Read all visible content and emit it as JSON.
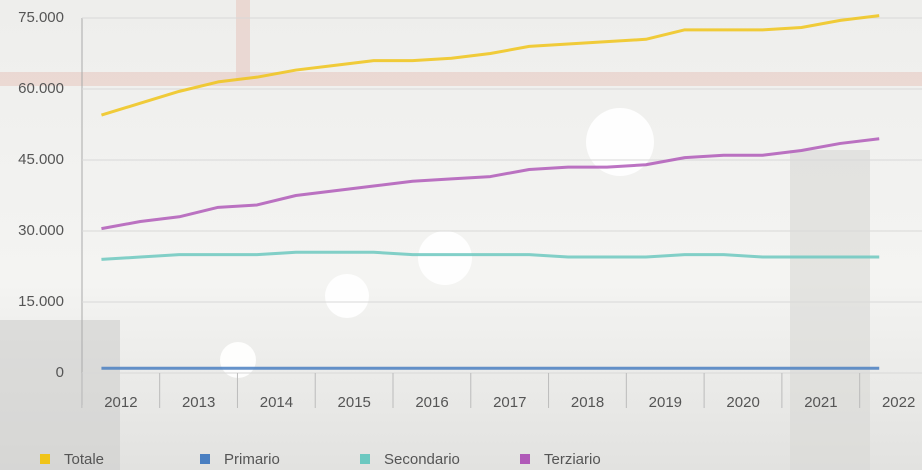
{
  "chart_data": {
    "type": "line",
    "x": [
      2011.75,
      2012.25,
      2012.75,
      2013.25,
      2013.75,
      2014.25,
      2014.75,
      2015.25,
      2015.75,
      2016.25,
      2016.75,
      2017.25,
      2017.75,
      2018.25,
      2018.75,
      2019.25,
      2019.75,
      2020.25,
      2020.75,
      2021.25,
      2021.75
    ],
    "series": [
      {
        "name": "Totale",
        "color": "#f0c419",
        "values": [
          54500,
          57000,
          59500,
          61500,
          62500,
          64000,
          65000,
          66000,
          66000,
          66500,
          67500,
          69000,
          69500,
          70000,
          70500,
          72500,
          72500,
          72500,
          73000,
          74500,
          75500
        ]
      },
      {
        "name": "Primario",
        "color": "#4a7fc1",
        "values": [
          1000,
          1000,
          1000,
          1000,
          1000,
          1000,
          1000,
          1000,
          1000,
          1000,
          1000,
          1000,
          1000,
          1000,
          1000,
          1000,
          1000,
          1000,
          1000,
          1000,
          1000
        ]
      },
      {
        "name": "Secondario",
        "color": "#6cc8c0",
        "values": [
          24000,
          24500,
          25000,
          25000,
          25000,
          25500,
          25500,
          25500,
          25000,
          25000,
          25000,
          25000,
          24500,
          24500,
          24500,
          25000,
          25000,
          24500,
          24500,
          24500,
          24500
        ]
      },
      {
        "name": "Terziario",
        "color": "#b05ab8",
        "values": [
          30500,
          32000,
          33000,
          35000,
          35500,
          37500,
          38500,
          39500,
          40500,
          41000,
          41500,
          43000,
          43500,
          43500,
          44000,
          45500,
          46000,
          46000,
          47000,
          48500,
          49500
        ]
      }
    ],
    "xlim": [
      2011.5,
      2022.3
    ],
    "xticks": [
      2012,
      2013,
      2014,
      2015,
      2016,
      2017,
      2018,
      2019,
      2020,
      2021,
      2022
    ],
    "ylim": [
      0,
      75000
    ],
    "yticks": [
      0,
      {
        "value": 15000,
        "label": "15.000"
      },
      {
        "value": 30000,
        "label": "30.000"
      },
      {
        "value": 45000,
        "label": "45.000"
      },
      {
        "value": 60000,
        "label": "60.000"
      },
      {
        "value": 75000,
        "label": "75.000"
      }
    ],
    "grid": true
  }
}
